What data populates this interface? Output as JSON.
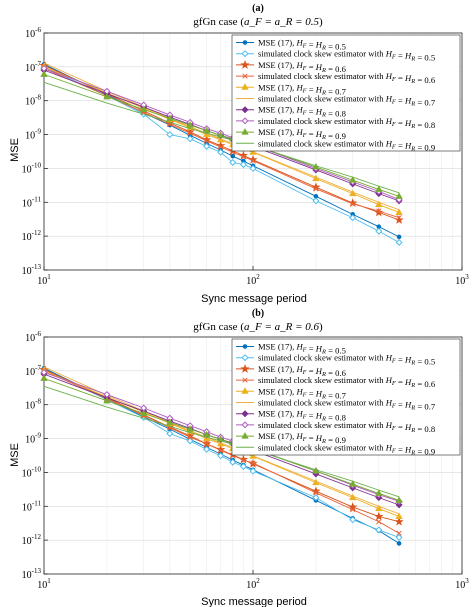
{
  "chart_data": [
    {
      "type": "line",
      "panel_label": "(a)",
      "title": "gfGn case (a_F = a_R = 0.5)",
      "title_text": "gfGn case (",
      "title_math": "a_F = a_R = 0.5",
      "xlabel": "Sync message period",
      "ylabel": "MSE",
      "xscale": "log",
      "yscale": "log",
      "xlim": [
        10,
        1000
      ],
      "ylim": [
        1e-13,
        1e-06
      ],
      "x_ticks": [
        "10^1",
        "10^2",
        "10^3"
      ],
      "y_ticks": [
        "10^-13",
        "10^-12",
        "10^-11",
        "10^-10",
        "10^-9",
        "10^-8",
        "10^-7",
        "10^-6"
      ],
      "grid": true,
      "legend_position": "top-right",
      "x": [
        10,
        20,
        30,
        40,
        50,
        60,
        70,
        80,
        90,
        100,
        200,
        300,
        400,
        500
      ],
      "series": [
        {
          "name": "MSE (17), H_F = H_R = 0.5",
          "color": "#0072BD",
          "marker": "dot",
          "values": [
            1.2e-07,
            1.5e-08,
            4.4e-09,
            1.9e-09,
            9.5e-10,
            5.5e-10,
            3.5e-10,
            2.3e-10,
            1.65e-10,
            1.2e-10,
            1.5e-11,
            4.4e-12,
            1.9e-12,
            9.5e-13
          ]
        },
        {
          "name": "simulated clock skew estimator with H_F = H_R = 0.5",
          "color": "#4DBEEE",
          "marker": "diamond-open",
          "values": [
            1e-07,
            1.4e-08,
            4e-09,
            1e-09,
            7.5e-10,
            4.5e-10,
            3e-10,
            1.5e-10,
            1.3e-10,
            1e-10,
            1.1e-11,
            3.5e-12,
            1.4e-12,
            6.5e-13
          ]
        },
        {
          "name": "MSE (17), H_F = H_R = 0.6",
          "color": "#D95319",
          "marker": "star",
          "values": [
            1.1e-07,
            1.6e-08,
            5e-09,
            2.2e-09,
            1.2e-09,
            7e-10,
            4.7e-10,
            3.3e-10,
            2.4e-10,
            1.8e-10,
            2.8e-11,
            9.5e-12,
            5e-12,
            3e-12
          ]
        },
        {
          "name": "simulated clock skew estimator with H_F = H_R = 0.6",
          "color": "#E8643A",
          "marker": "x",
          "values": [
            9e-08,
            1.4e-08,
            4.5e-09,
            2e-09,
            1.1e-09,
            6.5e-10,
            4.3e-10,
            3e-10,
            2.2e-10,
            1.7e-10,
            2.5e-11,
            9e-12,
            5.5e-12,
            3.5e-12
          ]
        },
        {
          "name": "MSE (17), H_F = H_R = 0.7",
          "color": "#EDB120",
          "marker": "triangle",
          "values": [
            1e-07,
            1.7e-08,
            6e-09,
            2.8e-09,
            1.6e-09,
            1e-09,
            7e-10,
            5e-10,
            3.8e-10,
            3e-10,
            5e-11,
            1.8e-11,
            8.5e-12,
            5e-12
          ]
        },
        {
          "name": "simulated clock skew estimator with H_F = H_R = 0.7",
          "color": "#F0B040",
          "marker": "none",
          "values": [
            1.3e-07,
            1.9e-08,
            6.5e-09,
            3e-09,
            1.7e-09,
            1.1e-09,
            7.5e-10,
            5.4e-10,
            4e-10,
            3.1e-10,
            5.5e-11,
            2e-11,
            1e-11,
            6e-12
          ]
        },
        {
          "name": "MSE (17), H_F = H_R = 0.8",
          "color": "#7E2F8E",
          "marker": "diamond",
          "values": [
            8e-08,
            1.6e-08,
            6.5e-09,
            3.3e-09,
            2e-09,
            1.3e-09,
            9.5e-10,
            7e-10,
            5.5e-10,
            4.5e-10,
            9e-11,
            3.5e-11,
            1.8e-11,
            1.1e-11
          ]
        },
        {
          "name": "simulated clock skew estimator with H_F = H_R = 0.8",
          "color": "#B05CC0",
          "marker": "diamond-open",
          "values": [
            9e-08,
            1.9e-08,
            7.5e-09,
            3.8e-09,
            2.3e-09,
            1.5e-09,
            1.1e-09,
            8e-10,
            6.3e-10,
            5e-10,
            1e-10,
            4e-11,
            2.1e-11,
            1.2e-11
          ]
        },
        {
          "name": "MSE (17), H_F = H_R = 0.9",
          "color": "#77AC30",
          "marker": "triangle",
          "values": [
            6e-08,
            1.3e-08,
            5.5e-09,
            3e-09,
            1.9e-09,
            1.3e-09,
            9.5e-10,
            7.5e-10,
            6e-10,
            5e-10,
            1.1e-10,
            4.5e-11,
            2.4e-11,
            1.5e-11
          ]
        },
        {
          "name": "simulated clock skew estimator with H_F = H_R = 0.9",
          "color": "#6AB04C",
          "marker": "none",
          "values": [
            3.5e-08,
            8.5e-09,
            4e-09,
            2.3e-09,
            1.5e-09,
            1.1e-09,
            8.5e-10,
            6.8e-10,
            5.6e-10,
            4.8e-10,
            1.2e-10,
            5.5e-11,
            3e-11,
            1.9e-11
          ]
        }
      ]
    },
    {
      "type": "line",
      "panel_label": "(b)",
      "title": "gfGn case (a_F = a_R = 0.6)",
      "title_text": "gfGn case (",
      "title_math": "a_F = a_R = 0.6",
      "xlabel": "Sync message period",
      "ylabel": "MSE",
      "xscale": "log",
      "yscale": "log",
      "xlim": [
        10,
        1000
      ],
      "ylim": [
        1e-13,
        1e-06
      ],
      "x_ticks": [
        "10^1",
        "10^2",
        "10^3"
      ],
      "y_ticks": [
        "10^-13",
        "10^-12",
        "10^-11",
        "10^-10",
        "10^-9",
        "10^-8",
        "10^-7",
        "10^-6"
      ],
      "grid": true,
      "legend_position": "top-right",
      "x": [
        10,
        20,
        30,
        40,
        50,
        60,
        70,
        80,
        90,
        100,
        200,
        300,
        400,
        500
      ],
      "series": [
        {
          "name": "MSE (17), H_F = H_R = 0.5",
          "color": "#0072BD",
          "marker": "dot",
          "values": [
            1.2e-07,
            1.5e-08,
            4.4e-09,
            1.9e-09,
            9.5e-10,
            5.5e-10,
            3.5e-10,
            2.3e-10,
            1.65e-10,
            1.2e-10,
            1.5e-11,
            4.4e-12,
            1.9e-12,
            8e-13
          ]
        },
        {
          "name": "simulated clock skew estimator with H_F = H_R = 0.5",
          "color": "#4DBEEE",
          "marker": "diamond-open",
          "values": [
            1.1e-07,
            1.4e-08,
            4.2e-09,
            1.4e-09,
            8.5e-10,
            4.8e-10,
            3.1e-10,
            2e-10,
            1.5e-10,
            1.1e-10,
            1.8e-11,
            4e-12,
            2e-12,
            1.2e-12
          ]
        },
        {
          "name": "MSE (17), H_F = H_R = 0.6",
          "color": "#D95319",
          "marker": "star",
          "values": [
            1.1e-07,
            1.6e-08,
            5e-09,
            2.2e-09,
            1.2e-09,
            7e-10,
            4.7e-10,
            3.3e-10,
            2.4e-10,
            1.8e-10,
            2.8e-11,
            9.5e-12,
            5e-12,
            3.5e-12
          ]
        },
        {
          "name": "simulated clock skew estimator with H_F = H_R = 0.6",
          "color": "#E8643A",
          "marker": "x",
          "values": [
            1e-07,
            1.5e-08,
            4.8e-09,
            2.1e-09,
            1.1e-09,
            7e-10,
            4.5e-10,
            3.2e-10,
            2.3e-10,
            1.9e-10,
            2.5e-11,
            8e-12,
            3.5e-12,
            1.6e-12
          ]
        },
        {
          "name": "MSE (17), H_F = H_R = 0.7",
          "color": "#EDB120",
          "marker": "triangle",
          "values": [
            1e-07,
            1.7e-08,
            6e-09,
            2.8e-09,
            1.6e-09,
            1e-09,
            7e-10,
            5e-10,
            3.8e-10,
            3e-10,
            5e-11,
            1.8e-11,
            8.5e-12,
            5e-12
          ]
        },
        {
          "name": "simulated clock skew estimator with H_F = H_R = 0.7",
          "color": "#F0B040",
          "marker": "none",
          "values": [
            1.3e-07,
            1.9e-08,
            6.5e-09,
            3e-09,
            1.7e-09,
            1.1e-09,
            7.5e-10,
            5.4e-10,
            4e-10,
            3.1e-10,
            5.5e-11,
            2e-11,
            1e-11,
            6e-12
          ]
        },
        {
          "name": "MSE (17), H_F = H_R = 0.8",
          "color": "#7E2F8E",
          "marker": "diamond",
          "values": [
            8e-08,
            1.6e-08,
            6.5e-09,
            3.3e-09,
            2e-09,
            1.3e-09,
            9.5e-10,
            7e-10,
            5.5e-10,
            4.5e-10,
            9e-11,
            3.5e-11,
            1.8e-11,
            1.1e-11
          ]
        },
        {
          "name": "simulated clock skew estimator with H_F = H_R = 0.8",
          "color": "#B05CC0",
          "marker": "diamond-open",
          "values": [
            9e-08,
            2e-08,
            8e-09,
            4e-09,
            2.4e-09,
            1.6e-09,
            1.1e-09,
            8.5e-10,
            6.5e-10,
            5.2e-10,
            1.1e-10,
            4.2e-11,
            2.2e-11,
            1.4e-11
          ]
        },
        {
          "name": "MSE (17), H_F = H_R = 0.9",
          "color": "#77AC30",
          "marker": "triangle",
          "values": [
            6e-08,
            1.3e-08,
            5.5e-09,
            3e-09,
            1.9e-09,
            1.3e-09,
            9.5e-10,
            7.5e-10,
            6e-10,
            5e-10,
            1.1e-10,
            4.5e-11,
            2.4e-11,
            1.5e-11
          ]
        },
        {
          "name": "simulated clock skew estimator with H_F = H_R = 0.9",
          "color": "#6AB04C",
          "marker": "none",
          "values": [
            3.5e-08,
            8.5e-09,
            4e-09,
            2.3e-09,
            1.5e-09,
            1.1e-09,
            8.5e-10,
            6.8e-10,
            5.6e-10,
            4.8e-10,
            1.2e-10,
            5.5e-11,
            3e-11,
            1.9e-11
          ]
        }
      ]
    }
  ]
}
